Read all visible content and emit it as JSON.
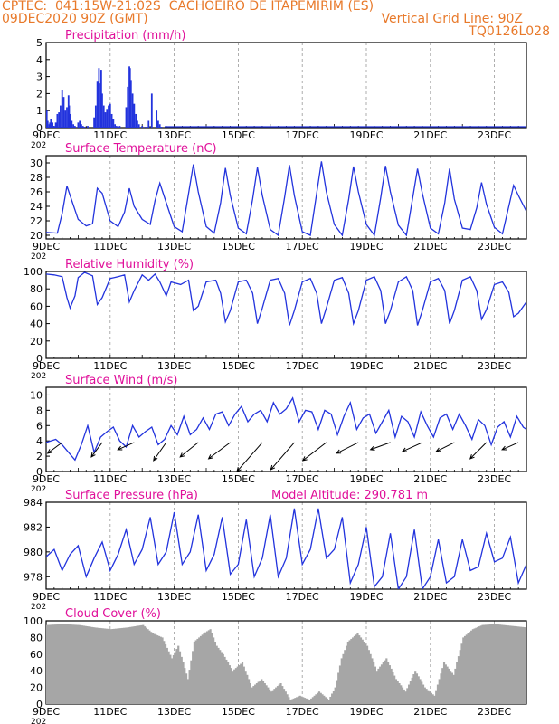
{
  "header": {
    "line1_left": "CPTEC:  041:15W-21:02S  CACHOEIRO DE ITAPEMIRIM (ES)",
    "line2_left": "09DEC2020 90Z (GMT)",
    "line2_right": "Vertical Grid Line: 90Z",
    "line3_right": "TQ0126L028"
  },
  "colors": {
    "header": "#e8792a",
    "title": "#e0109a",
    "series": "#2233dd",
    "cloud": "#a6a6a6",
    "vector": "#000000"
  },
  "x_axis": {
    "tick_labels": [
      "9DEC",
      "11DEC",
      "13DEC",
      "15DEC",
      "17DEC",
      "19DEC",
      "21DEC",
      "23DEC"
    ],
    "tick_days": [
      0,
      2,
      4,
      6,
      8,
      10,
      12,
      14
    ],
    "range_days": [
      0,
      15
    ],
    "year_fragment": "202"
  },
  "chart_data": [
    {
      "type": "bar",
      "title": "Precipitation (mm/h)",
      "ylim": [
        0,
        5
      ],
      "yticks": [
        0,
        1,
        2,
        3,
        4,
        5
      ],
      "x_days": [
        0.02,
        0.05,
        0.1,
        0.12,
        0.15,
        0.2,
        0.25,
        0.3,
        0.35,
        0.4,
        0.45,
        0.5,
        0.55,
        0.6,
        0.65,
        0.7,
        0.72,
        0.75,
        0.8,
        0.85,
        0.9,
        1.0,
        1.05,
        1.1,
        1.15,
        1.2,
        1.3,
        1.5,
        1.55,
        1.6,
        1.65,
        1.7,
        1.72,
        1.75,
        1.8,
        1.85,
        1.9,
        1.95,
        2.0,
        2.05,
        2.1,
        2.15,
        2.2,
        2.25,
        2.3,
        2.5,
        2.55,
        2.6,
        2.62,
        2.65,
        2.7,
        2.75,
        2.8,
        2.85,
        2.9,
        3.0,
        3.1,
        3.2,
        3.3,
        3.45,
        3.5,
        3.55,
        3.6
      ],
      "values": [
        1.0,
        0.4,
        0.2,
        0.3,
        0.5,
        0.3,
        0.1,
        0.3,
        0.8,
        0.9,
        1.3,
        2.2,
        1.8,
        1.0,
        1.2,
        1.9,
        1.3,
        0.8,
        0.4,
        0.2,
        0.1,
        0.3,
        0.4,
        0.2,
        0.1,
        0.05,
        0.1,
        0.6,
        1.3,
        2.7,
        3.5,
        2.6,
        3.4,
        2.0,
        1.3,
        0.9,
        1.1,
        1.3,
        1.4,
        0.8,
        0.5,
        0.2,
        0.1,
        0.05,
        0.1,
        1.2,
        2.4,
        3.6,
        3.5,
        2.8,
        2.0,
        1.4,
        0.8,
        0.4,
        0.2,
        0.1,
        0.05,
        0.4,
        2.0,
        1.0,
        0.4,
        0.2,
        0.05
      ]
    },
    {
      "type": "line",
      "title": "Surface Temperature (nC)",
      "ylim": [
        19.5,
        31
      ],
      "yticks": [
        20,
        22,
        24,
        26,
        28,
        30
      ],
      "x_days": [
        0,
        0.35,
        0.5,
        0.65,
        0.75,
        1.0,
        1.25,
        1.45,
        1.6,
        1.75,
        2.0,
        2.25,
        2.45,
        2.6,
        2.75,
        3.0,
        3.25,
        3.4,
        3.55,
        3.75,
        4.0,
        4.25,
        4.45,
        4.6,
        4.75,
        5.0,
        5.25,
        5.45,
        5.6,
        5.75,
        6.0,
        6.25,
        6.45,
        6.6,
        6.75,
        7.0,
        7.25,
        7.45,
        7.6,
        7.75,
        8.0,
        8.25,
        8.45,
        8.6,
        8.75,
        9.0,
        9.25,
        9.45,
        9.6,
        9.75,
        10.0,
        10.25,
        10.45,
        10.6,
        10.75,
        11.0,
        11.25,
        11.45,
        11.6,
        11.75,
        12.0,
        12.25,
        12.45,
        12.6,
        12.75,
        13.0,
        13.25,
        13.45,
        13.6,
        13.75,
        14.0,
        14.25,
        14.45,
        14.6,
        14.75,
        15.0
      ],
      "y": [
        20.4,
        20.3,
        23.0,
        26.8,
        25.5,
        22.2,
        21.3,
        21.6,
        26.5,
        25.8,
        22.0,
        21.2,
        23.2,
        26.5,
        24.0,
        22.2,
        21.5,
        24.8,
        27.2,
        24.5,
        21.2,
        20.5,
        25.8,
        29.8,
        26.0,
        21.2,
        20.3,
        24.5,
        29.3,
        25.5,
        21.0,
        20.2,
        25.0,
        29.4,
        25.5,
        20.8,
        20.0,
        25.3,
        29.7,
        25.5,
        20.5,
        20.0,
        25.8,
        30.2,
        26.0,
        21.5,
        20.0,
        25.0,
        29.5,
        26.0,
        21.5,
        20.0,
        25.2,
        29.6,
        26.0,
        21.4,
        20.0,
        25.2,
        29.2,
        25.8,
        21.0,
        20.2,
        24.5,
        29.2,
        25.0,
        21.0,
        20.8,
        23.8,
        27.3,
        24.3,
        21.1,
        20.2,
        24.0,
        26.9,
        25.5,
        23.3
      ]
    },
    {
      "type": "line",
      "title": "Relative Humidity (%)",
      "ylim": [
        0,
        100
      ],
      "yticks": [
        0,
        20,
        40,
        60,
        80,
        100
      ],
      "x_days": [
        0,
        0.25,
        0.5,
        0.65,
        0.75,
        0.9,
        1.0,
        1.2,
        1.45,
        1.6,
        1.75,
        2.0,
        2.25,
        2.45,
        2.6,
        2.75,
        3.0,
        3.2,
        3.4,
        3.55,
        3.75,
        3.9,
        4.2,
        4.45,
        4.6,
        4.75,
        5.0,
        5.3,
        5.45,
        5.6,
        5.75,
        6.0,
        6.25,
        6.45,
        6.6,
        6.75,
        7.0,
        7.25,
        7.45,
        7.6,
        7.75,
        8.0,
        8.25,
        8.45,
        8.6,
        8.75,
        9.0,
        9.25,
        9.45,
        9.6,
        9.75,
        10.0,
        10.25,
        10.45,
        10.6,
        10.75,
        11.0,
        11.25,
        11.45,
        11.6,
        11.75,
        12.0,
        12.25,
        12.45,
        12.6,
        12.75,
        13.0,
        13.25,
        13.45,
        13.6,
        13.75,
        14.0,
        14.25,
        14.45,
        14.6,
        14.75,
        15.0
      ],
      "y": [
        97,
        96,
        94,
        70,
        58,
        72,
        93,
        99,
        95,
        62,
        70,
        92,
        94,
        96,
        65,
        78,
        96,
        90,
        97,
        88,
        72,
        88,
        85,
        90,
        55,
        60,
        88,
        90,
        75,
        42,
        55,
        88,
        90,
        75,
        40,
        58,
        90,
        92,
        75,
        38,
        55,
        88,
        92,
        75,
        40,
        58,
        90,
        93,
        75,
        40,
        55,
        90,
        94,
        78,
        40,
        55,
        88,
        94,
        78,
        38,
        55,
        88,
        92,
        78,
        40,
        55,
        90,
        94,
        78,
        45,
        56,
        85,
        88,
        76,
        48,
        52,
        65
      ]
    },
    {
      "type": "line",
      "title": "Surface Wind (m/s)",
      "ylim": [
        0,
        11
      ],
      "yticks": [
        0,
        2,
        4,
        6,
        8,
        10
      ],
      "x_days": [
        0,
        0.3,
        0.5,
        0.7,
        0.9,
        1.1,
        1.3,
        1.5,
        1.7,
        1.9,
        2.1,
        2.3,
        2.5,
        2.7,
        2.9,
        3.1,
        3.3,
        3.5,
        3.7,
        3.9,
        4.1,
        4.3,
        4.5,
        4.7,
        4.9,
        5.1,
        5.3,
        5.5,
        5.7,
        5.9,
        6.1,
        6.3,
        6.5,
        6.7,
        6.9,
        7.1,
        7.3,
        7.5,
        7.7,
        7.9,
        8.1,
        8.3,
        8.5,
        8.7,
        8.9,
        9.1,
        9.3,
        9.5,
        9.7,
        9.9,
        10.1,
        10.3,
        10.5,
        10.7,
        10.9,
        11.1,
        11.3,
        11.5,
        11.7,
        11.9,
        12.1,
        12.3,
        12.5,
        12.7,
        12.9,
        13.1,
        13.3,
        13.5,
        13.7,
        13.9,
        14.1,
        14.3,
        14.5,
        14.7,
        14.9,
        15.0
      ],
      "y": [
        3.8,
        4.2,
        3.5,
        2.5,
        1.5,
        3.5,
        6.0,
        2.5,
        4.5,
        5.2,
        5.8,
        4.0,
        3.2,
        6.0,
        4.5,
        5.2,
        5.8,
        3.5,
        4.2,
        6.0,
        4.8,
        7.2,
        4.8,
        5.5,
        7.0,
        5.5,
        7.5,
        7.8,
        6.0,
        7.5,
        8.5,
        6.5,
        7.5,
        8.0,
        6.5,
        9.0,
        7.5,
        8.2,
        9.6,
        6.5,
        8.0,
        7.8,
        5.5,
        8.0,
        7.5,
        4.8,
        7.2,
        9.0,
        5.5,
        7.0,
        7.5,
        5.0,
        6.5,
        8.0,
        4.5,
        7.2,
        6.5,
        4.5,
        7.8,
        6.0,
        4.5,
        7.0,
        7.5,
        5.5,
        7.5,
        6.0,
        4.2,
        6.8,
        6.0,
        3.5,
        5.8,
        6.5,
        4.5,
        7.2,
        5.8,
        5.5
      ],
      "vectors": {
        "x_days": [
          0.5,
          1.75,
          2.75,
          3.75,
          4.75,
          5.75,
          6.75,
          7.75,
          8.75,
          9.75,
          10.75,
          11.75,
          12.75,
          13.75,
          14.75
        ],
        "u": [
          0.8,
          0.6,
          0.9,
          0.7,
          1.0,
          1.2,
          1.4,
          1.3,
          1.3,
          1.2,
          1.1,
          1.1,
          1.0,
          0.9,
          0.9
        ],
        "v": [
          0.6,
          0.8,
          0.4,
          1.0,
          0.8,
          0.9,
          1.6,
          1.5,
          1.0,
          0.6,
          0.4,
          0.5,
          0.5,
          0.9,
          0.4
        ]
      }
    },
    {
      "type": "line",
      "title": "Surface Pressure (hPa)",
      "annotation": "Model Altitude: 290.781 m",
      "ylim": [
        977,
        984
      ],
      "yticks": [
        978,
        980,
        982,
        984
      ],
      "x_days": [
        0,
        0.25,
        0.5,
        0.75,
        1.0,
        1.25,
        1.5,
        1.75,
        2.0,
        2.25,
        2.5,
        2.75,
        3.0,
        3.25,
        3.5,
        3.75,
        4.0,
        4.25,
        4.5,
        4.75,
        5.0,
        5.25,
        5.5,
        5.75,
        6.0,
        6.25,
        6.5,
        6.75,
        7.0,
        7.25,
        7.5,
        7.75,
        8.0,
        8.25,
        8.5,
        8.75,
        9.0,
        9.25,
        9.5,
        9.75,
        10.0,
        10.25,
        10.5,
        10.75,
        11.0,
        11.25,
        11.5,
        11.75,
        12.0,
        12.25,
        12.5,
        12.75,
        13.0,
        13.25,
        13.5,
        13.75,
        14.0,
        14.25,
        14.5,
        14.75,
        15.0
      ],
      "y": [
        979.6,
        980.2,
        978.5,
        979.8,
        980.5,
        978.0,
        979.5,
        980.8,
        978.5,
        979.8,
        981.8,
        979.0,
        980.2,
        982.8,
        979.0,
        980.0,
        983.2,
        979.0,
        980.0,
        983.0,
        978.5,
        979.8,
        982.8,
        978.2,
        979.0,
        982.6,
        978.0,
        979.5,
        983.0,
        978.0,
        979.5,
        983.5,
        979.0,
        980.2,
        983.5,
        979.5,
        980.2,
        982.8,
        977.5,
        979.0,
        982.0,
        977.2,
        978.0,
        981.5,
        977.0,
        978.0,
        981.8,
        977.0,
        978.0,
        981.0,
        977.5,
        978.0,
        981.0,
        978.5,
        978.8,
        981.5,
        979.2,
        979.5,
        981.2,
        977.5,
        979.0
      ]
    },
    {
      "type": "bar",
      "title": "Cloud Cover (%)",
      "ylim": [
        0,
        100
      ],
      "yticks": [
        0,
        20,
        40,
        60,
        80,
        100
      ],
      "x_days": [
        0,
        0.5,
        1.0,
        1.5,
        2.0,
        2.5,
        3.0,
        3.3,
        3.6,
        3.9,
        4.1,
        4.4,
        4.6,
        4.9,
        5.1,
        5.3,
        5.5,
        5.8,
        6.1,
        6.4,
        6.7,
        7.0,
        7.3,
        7.6,
        7.9,
        8.2,
        8.5,
        8.8,
        9.0,
        9.2,
        9.4,
        9.7,
        10.0,
        10.3,
        10.6,
        10.9,
        11.2,
        11.5,
        11.8,
        12.1,
        12.4,
        12.7,
        13.0,
        13.3,
        13.6,
        14.0,
        14.5,
        15.0
      ],
      "values": [
        95,
        96,
        95,
        92,
        90,
        92,
        95,
        85,
        80,
        55,
        70,
        30,
        75,
        85,
        90,
        70,
        60,
        40,
        50,
        20,
        30,
        15,
        25,
        5,
        10,
        5,
        15,
        5,
        20,
        55,
        75,
        85,
        70,
        40,
        55,
        30,
        15,
        40,
        20,
        10,
        50,
        35,
        80,
        90,
        95,
        96,
        94,
        92
      ]
    }
  ]
}
